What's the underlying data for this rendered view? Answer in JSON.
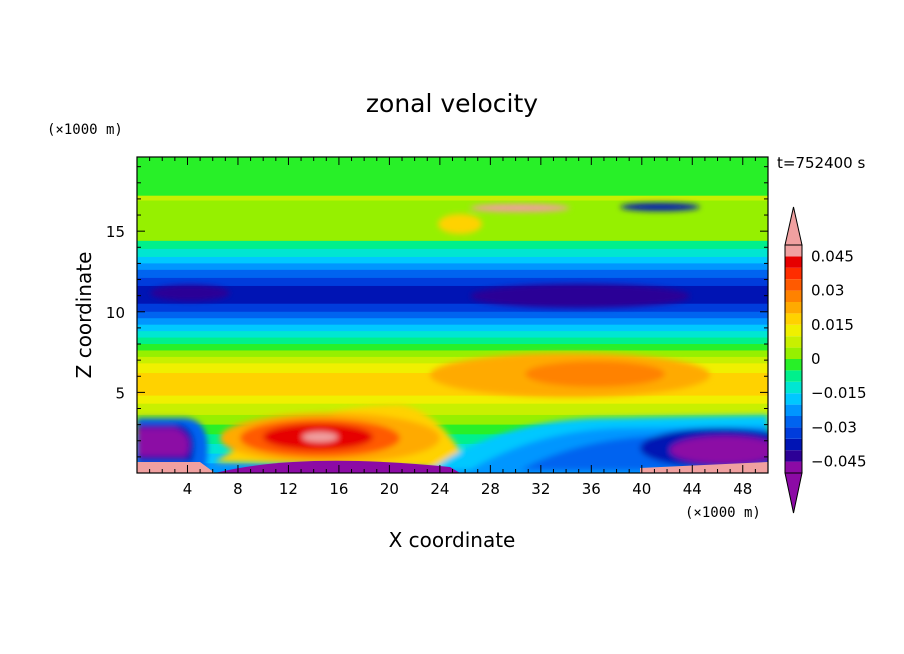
{
  "chart_data": {
    "type": "heatmap",
    "title": "zonal velocity",
    "xlabel": "X coordinate",
    "ylabel": "Z coordinate",
    "x_unit": "(×1000 m)",
    "y_unit": "(×1000 m)",
    "time_label": "t=752400 s",
    "xlim": [
      0,
      50
    ],
    "ylim": [
      0,
      19.6
    ],
    "x_ticks": [
      4,
      8,
      12,
      16,
      20,
      24,
      28,
      32,
      36,
      40,
      44,
      48
    ],
    "y_ticks": [
      5,
      10,
      15
    ],
    "colorbar": {
      "levels": [
        -0.05,
        -0.045,
        -0.04,
        -0.035,
        -0.03,
        -0.025,
        -0.02,
        -0.015,
        -0.01,
        -0.005,
        0,
        0.005,
        0.01,
        0.015,
        0.02,
        0.025,
        0.03,
        0.035,
        0.04,
        0.045,
        0.05
      ],
      "labels": [
        "0.045",
        "0.03",
        "0.015",
        "0",
        "−0.015",
        "−0.03",
        "−0.045"
      ],
      "label_values": [
        0.045,
        0.03,
        0.015,
        0,
        -0.015,
        -0.03,
        -0.045
      ],
      "colors": [
        "#8c0aa5",
        "#2c0096",
        "#0014b4",
        "#003cdc",
        "#0064f0",
        "#0096ff",
        "#00c8ff",
        "#00e6d2",
        "#00f08c",
        "#28f028",
        "#96f000",
        "#c8f000",
        "#f0f000",
        "#ffd200",
        "#ffaa00",
        "#ff8200",
        "#ff5a00",
        "#ff2d00",
        "#e60000",
        "#f0a0a0"
      ],
      "under_color": "#8c0aa5",
      "over_color": "#f0a0a0"
    }
  }
}
